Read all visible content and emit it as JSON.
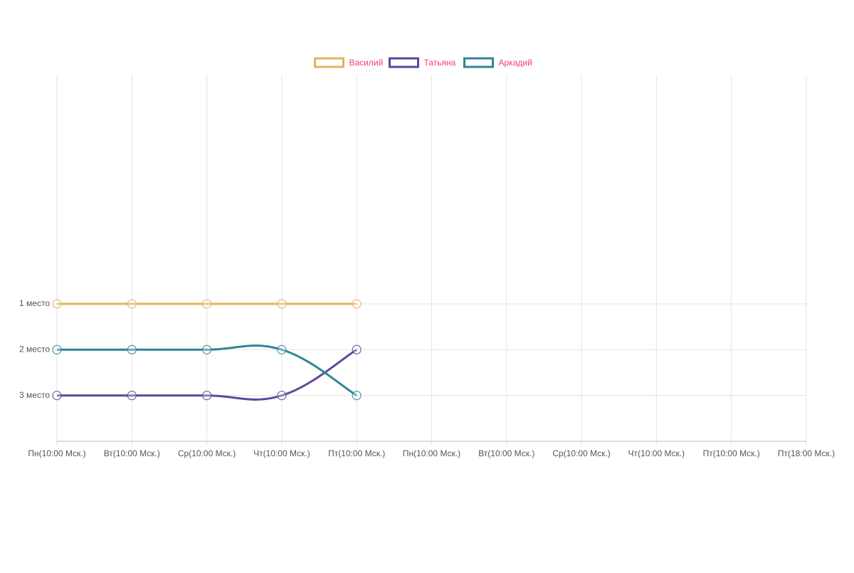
{
  "chart_data": {
    "type": "line",
    "categories": [
      "Пн(10:00 Мск.)",
      "Вт(10:00 Мск.)",
      "Ср(10:00 Мск.)",
      "Чт(10:00 Мск.)",
      "Пт(10:00 Мск.)",
      "Пн(10:00 Мск.)",
      "Вт(10:00 Мск.)",
      "Ср(10:00 Мск.)",
      "Чт(10:00 Мск.)",
      "Пт(10:00 Мск.)",
      "Пт(18:00 Мск.)"
    ],
    "series": [
      {
        "name": "Василий",
        "color": "#e3b35f",
        "values": [
          1,
          1,
          1,
          1,
          1,
          null,
          null,
          null,
          null,
          null,
          null
        ]
      },
      {
        "name": "Татьяна",
        "color": "#5a4a9b",
        "values": [
          3,
          3,
          3,
          3,
          2,
          null,
          null,
          null,
          null,
          null,
          null
        ]
      },
      {
        "name": "Аркадий",
        "color": "#2e8695",
        "values": [
          2,
          2,
          2,
          2,
          3,
          null,
          null,
          null,
          null,
          null,
          null
        ]
      }
    ],
    "ylim": [
      4,
      -4
    ],
    "yticks": [
      {
        "value": 1,
        "label": "1 место"
      },
      {
        "value": 2,
        "label": "2 место"
      },
      {
        "value": 3,
        "label": "3 место"
      }
    ],
    "grid": true,
    "legend": "top",
    "legend_text_color": "#f2416b"
  }
}
